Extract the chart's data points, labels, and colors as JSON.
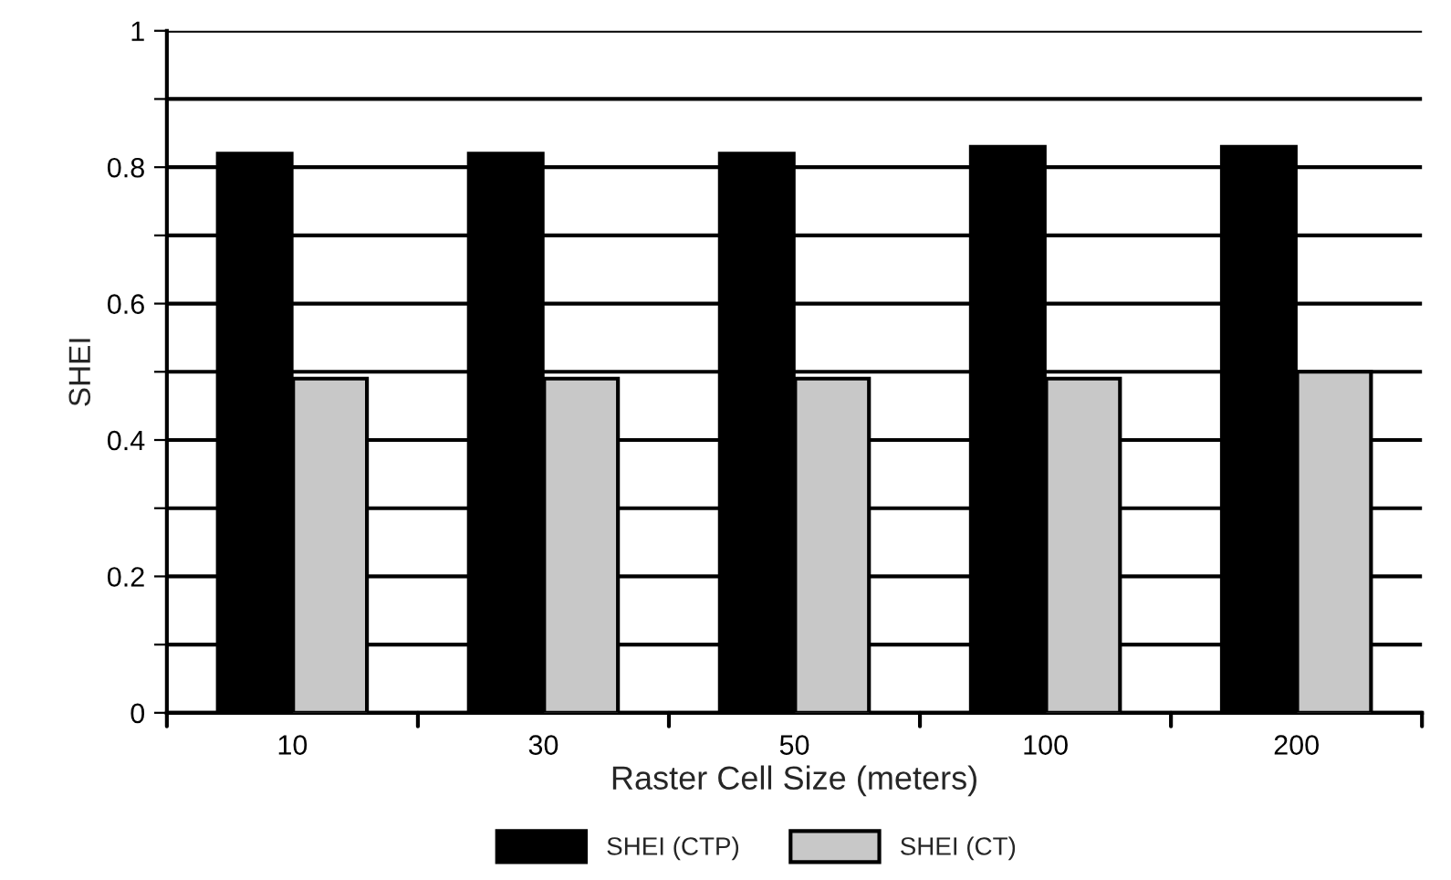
{
  "chart_data": {
    "type": "bar",
    "xlabel": "Raster Cell Size (meters)",
    "ylabel": "SHEI",
    "categories": [
      "10",
      "30",
      "50",
      "100",
      "200"
    ],
    "series": [
      {
        "name": "SHEI (CTP)",
        "color": "#000000",
        "values": [
          0.82,
          0.82,
          0.82,
          0.83,
          0.83
        ]
      },
      {
        "name": "SHEI (CT)",
        "color": "#c8c8c8",
        "values": [
          0.49,
          0.49,
          0.49,
          0.49,
          0.5
        ]
      }
    ],
    "ylim": [
      0,
      1
    ],
    "yticks": [
      0,
      {
        "value": 0.1,
        "label": null
      },
      0.2,
      {
        "value": 0.3,
        "label": null
      },
      0.4,
      {
        "value": 0.5,
        "label": null
      },
      0.6,
      {
        "value": 0.7,
        "label": null
      },
      0.8,
      {
        "value": 0.9,
        "label": null
      },
      1
    ],
    "grid": "y",
    "legend": "bottom"
  }
}
